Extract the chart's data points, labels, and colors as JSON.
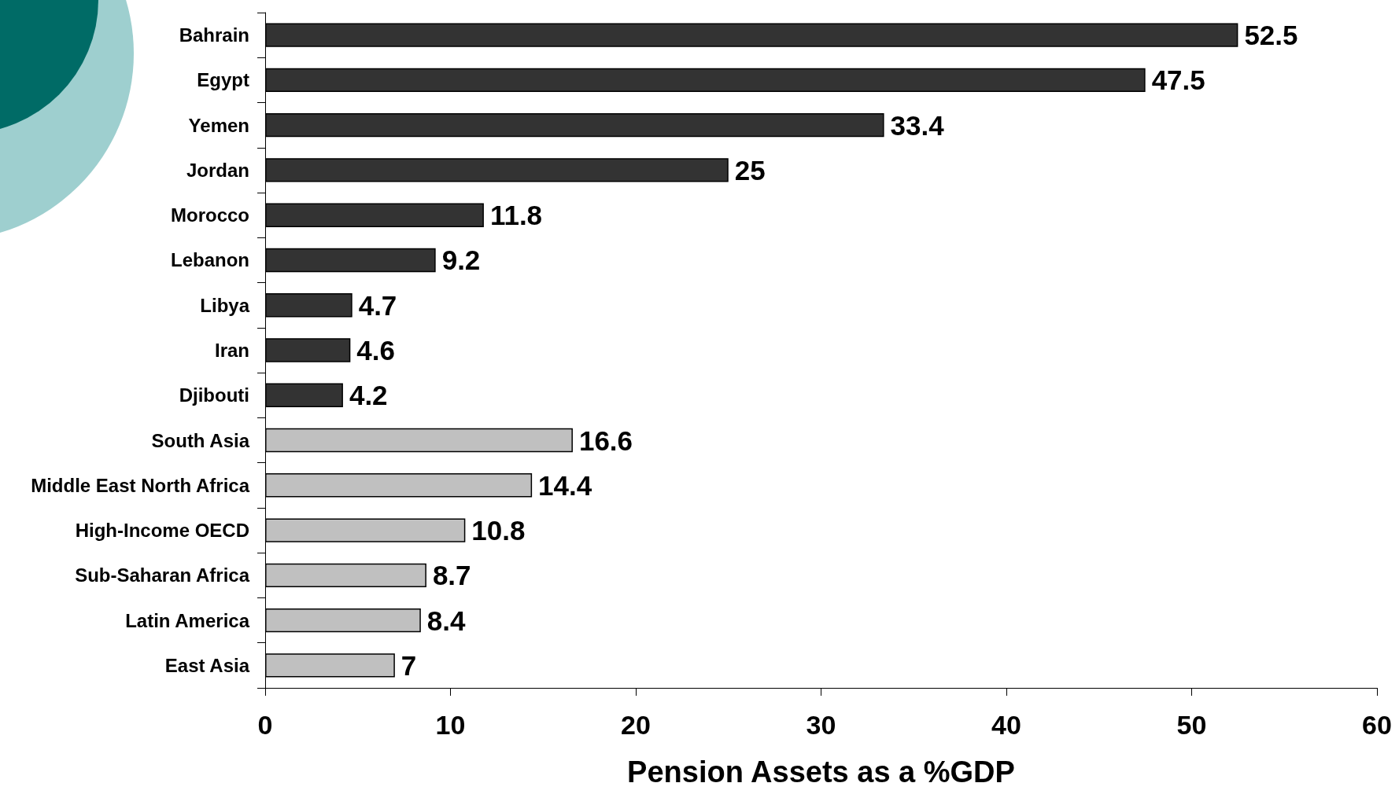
{
  "chart_data": {
    "type": "bar",
    "orientation": "horizontal",
    "xlabel": "Pension Assets as a %GDP",
    "categories": [
      "Bahrain",
      "Egypt",
      "Yemen",
      "Jordan",
      "Morocco",
      "Lebanon",
      "Libya",
      "Iran",
      "Djibouti",
      "South Asia",
      "Middle East North Africa",
      "High-Income OECD",
      "Sub-Saharan Africa",
      "Latin America",
      "East Asia"
    ],
    "values": [
      52.5,
      47.5,
      33.4,
      25,
      11.8,
      9.2,
      4.7,
      4.6,
      4.2,
      16.6,
      14.4,
      10.8,
      8.7,
      8.4,
      7
    ],
    "colors": [
      "#333333",
      "#333333",
      "#333333",
      "#333333",
      "#333333",
      "#333333",
      "#333333",
      "#333333",
      "#333333",
      "#c0c0c0",
      "#c0c0c0",
      "#c0c0c0",
      "#c0c0c0",
      "#c0c0c0",
      "#c0c0c0"
    ],
    "xlim": [
      0,
      60
    ],
    "xticks": [
      0,
      10,
      20,
      30,
      40,
      50,
      60
    ],
    "data_labels": true
  }
}
